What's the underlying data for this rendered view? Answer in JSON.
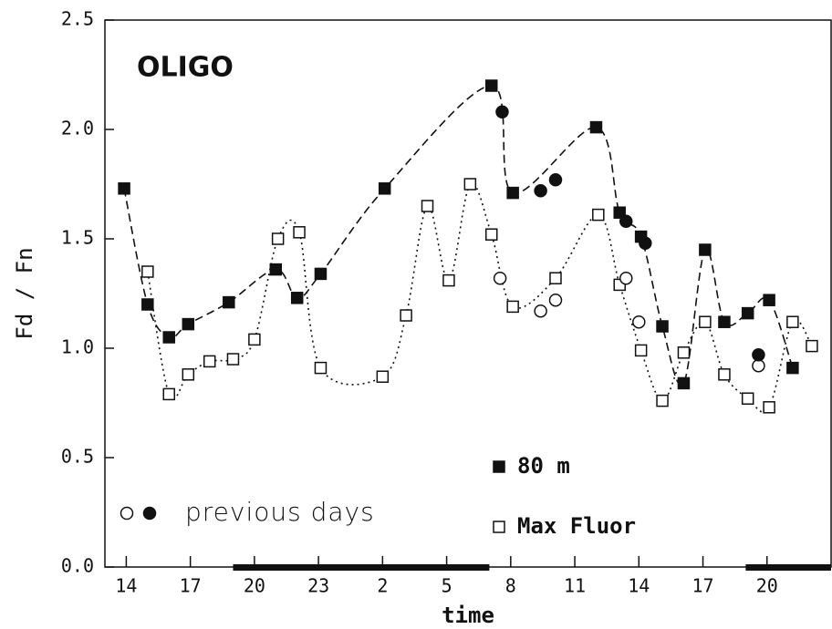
{
  "chart_data": {
    "type": "line",
    "title": "OLIGO",
    "xlabel": "time",
    "ylabel": "Fd / Fn",
    "xlim": [
      13,
      47
    ],
    "ylim": [
      0,
      2.5
    ],
    "xticks": [
      14,
      17,
      20,
      23,
      {
        "value": 26,
        "label": "2"
      },
      {
        "value": 29,
        "label": "5"
      },
      {
        "value": 32,
        "label": "8"
      },
      {
        "value": 35,
        "label": "11"
      },
      {
        "value": 38,
        "label": "14"
      },
      {
        "value": 41,
        "label": "17"
      },
      {
        "value": 44,
        "label": "20"
      }
    ],
    "yticks": [
      {
        "value": 0,
        "label": "0.0"
      },
      0.5,
      {
        "value": 1,
        "label": "1.0"
      },
      1.5,
      {
        "value": 2,
        "label": "2.0"
      },
      2.5
    ],
    "night": [
      [
        19,
        31
      ],
      [
        43,
        47
      ]
    ],
    "color": "#111111",
    "series": [
      {
        "name": "80 m",
        "marker": "filled-square",
        "line": "dashed",
        "x": [
          13.9,
          15.0,
          16.0,
          16.9,
          18.8,
          21.0,
          22.0,
          23.1,
          26.1,
          31.1,
          32.1,
          36.0,
          37.1,
          38.1,
          39.1,
          40.1,
          41.1,
          42.0,
          43.1,
          44.1,
          45.2
        ],
        "values": [
          1.73,
          1.2,
          1.05,
          1.11,
          1.21,
          1.36,
          1.23,
          1.34,
          1.73,
          2.2,
          1.71,
          2.01,
          1.62,
          1.51,
          1.1,
          0.84,
          1.45,
          1.12,
          1.16,
          1.22,
          0.91
        ]
      },
      {
        "name": "Max Fluor",
        "marker": "open-square",
        "line": "dotted",
        "x": [
          15.0,
          16.0,
          16.9,
          17.9,
          19.0,
          20.0,
          21.1,
          22.1,
          23.1,
          26.0,
          27.1,
          28.1,
          29.1,
          30.1,
          31.1,
          32.1,
          34.1,
          36.1,
          37.1,
          38.1,
          39.1,
          40.1,
          41.1,
          42.0,
          43.1,
          44.1,
          45.2,
          46.1
        ],
        "values": [
          1.35,
          0.79,
          0.88,
          0.94,
          0.95,
          1.04,
          1.5,
          1.53,
          0.91,
          0.87,
          1.15,
          1.65,
          1.31,
          1.75,
          1.52,
          1.19,
          1.32,
          1.61,
          1.29,
          0.99,
          0.76,
          0.98,
          1.12,
          0.88,
          0.77,
          0.73,
          1.12,
          1.01
        ]
      }
    ],
    "previous_days": {
      "label": "previous days",
      "series": [
        {
          "marker": "open-circle",
          "x": [
            31.5,
            33.4,
            34.1,
            37.4,
            38.0,
            43.6
          ],
          "values": [
            1.32,
            1.17,
            1.22,
            1.32,
            1.12,
            0.92
          ]
        },
        {
          "marker": "filled-circle",
          "x": [
            31.6,
            33.4,
            34.1,
            37.4,
            38.3,
            43.6
          ],
          "values": [
            2.08,
            1.72,
            1.77,
            1.58,
            1.48,
            0.97
          ]
        }
      ]
    }
  }
}
